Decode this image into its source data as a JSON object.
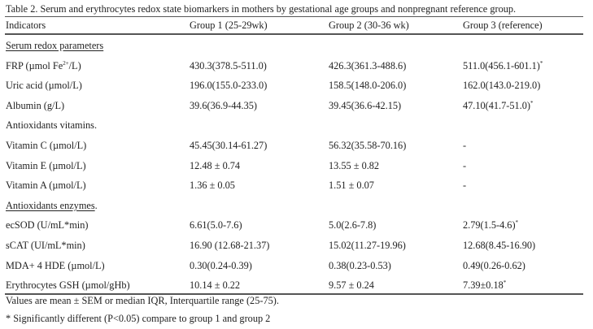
{
  "title": "Table 2. Serum and erythrocytes redox state biomarkers in mothers by gestational age groups and nonpregnant reference group.",
  "headers": [
    "Indicators",
    "Group 1 (25-29wk)",
    "Group 2 (30-36 wk)",
    "Group 3 (reference)"
  ],
  "rows": [
    {
      "section": "Serum redox parameters",
      "underline": true
    },
    {
      "label": "FRP (µmol Fe",
      "label_sup": "2+",
      "label_after": "/L)",
      "values": [
        "430.3(378.5-511.0)",
        "426.3(361.3-488.6)",
        "511.0(456.1-601.1)"
      ],
      "marks": [
        "",
        "",
        "*"
      ]
    },
    {
      "label": "Uric acid (µmol/L)",
      "values": [
        "196.0(155.0-233.0)",
        "158.5(148.0-206.0)",
        "162.0(143.0-219.0)"
      ],
      "marks": [
        "",
        "",
        ""
      ]
    },
    {
      "label": "Albumin (g/L)",
      "values": [
        "39.6(36.9-44.35)",
        "39.45(36.6-42.15)",
        "47.10(41.7-51.0)"
      ],
      "marks": [
        "",
        "",
        "*"
      ]
    },
    {
      "section": "Antioxidants vitamins.",
      "underline": false
    },
    {
      "label": "Vitamin C (µmol/L)",
      "values": [
        "45.45(30.14-61.27)",
        "56.32(35.58-70.16)",
        "-"
      ],
      "marks": [
        "",
        "",
        ""
      ]
    },
    {
      "label": "Vitamin E (µmol/L)",
      "values": [
        "12.48 ± 0.74",
        "13.55 ± 0.82",
        "-"
      ],
      "marks": [
        "",
        "",
        ""
      ]
    },
    {
      "label": "Vitamin A (µmol/L)",
      "values": [
        "1.36 ± 0.05",
        "1.51 ± 0.07",
        "-"
      ],
      "marks": [
        "",
        "",
        ""
      ]
    },
    {
      "section": "Antioxidants enzymes",
      "section_after": ".",
      "underline": true
    },
    {
      "label": "ecSOD (U/mL*min)",
      "values": [
        "6.61(5.0-7.6)",
        "5.0(2.6-7.8)",
        "2.79(1.5-4.6)"
      ],
      "marks": [
        "",
        "",
        "*"
      ]
    },
    {
      "label": "sCAT (UI/mL*min)",
      "values": [
        "16.90 (12.68-21.37)",
        "15.02(11.27-19.96)",
        "12.68(8.45-16.90)"
      ],
      "marks": [
        "",
        "",
        ""
      ]
    },
    {
      "label": "MDA+ 4 HDE (µmol/L)",
      "values": [
        "0.30(0.24-0.39)",
        "0.38(0.23-0.53)",
        "0.49(0.26-0.62)"
      ],
      "marks": [
        "",
        "",
        ""
      ]
    },
    {
      "label": "Erythrocytes GSH (µmol/gHb)",
      "values": [
        "10.14 ± 0.22",
        "9.57 ± 0.24",
        "7.39±0.18"
      ],
      "marks": [
        "",
        "",
        "*"
      ]
    }
  ],
  "footnotes": [
    "Values are mean ± SEM or median IQR, Interquartile range (25-75).",
    "* Significantly different (P<0.05) compare to group 1 and group 2"
  ]
}
